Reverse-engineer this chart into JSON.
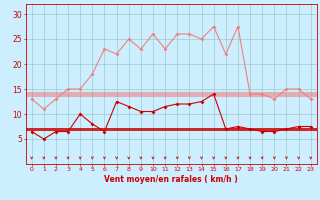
{
  "xlabel": "Vent moyen/en rafales ( km/h )",
  "x": [
    0,
    1,
    2,
    3,
    4,
    5,
    6,
    7,
    8,
    9,
    10,
    11,
    12,
    13,
    14,
    15,
    16,
    17,
    18,
    19,
    20,
    21,
    22,
    23
  ],
  "rafales": [
    13,
    11,
    13,
    15,
    15,
    18,
    23,
    22,
    25,
    23,
    26,
    23,
    26,
    26,
    25,
    27.5,
    22,
    27.5,
    14,
    14,
    13,
    15,
    15,
    13
  ],
  "moyen": [
    6.5,
    5,
    6.5,
    6.5,
    10,
    8,
    6.5,
    12.5,
    11.5,
    10.5,
    10.5,
    11.5,
    12,
    12,
    12.5,
    14,
    7,
    7.5,
    7,
    6.5,
    6.5,
    7,
    7.5,
    7.5
  ],
  "avg_rafales_line": 14.0,
  "avg_moyen_line": 7.0,
  "color_rafales": "#f08080",
  "color_moyen": "#cc0000",
  "bg_color": "#cceeff",
  "grid_color": "#99cccc",
  "ylim": [
    0,
    32
  ],
  "yticks": [
    5,
    10,
    15,
    20,
    25,
    30
  ],
  "xticks": [
    0,
    1,
    2,
    3,
    4,
    5,
    6,
    7,
    8,
    9,
    10,
    11,
    12,
    13,
    14,
    15,
    16,
    17,
    18,
    19,
    20,
    21,
    22,
    23
  ]
}
